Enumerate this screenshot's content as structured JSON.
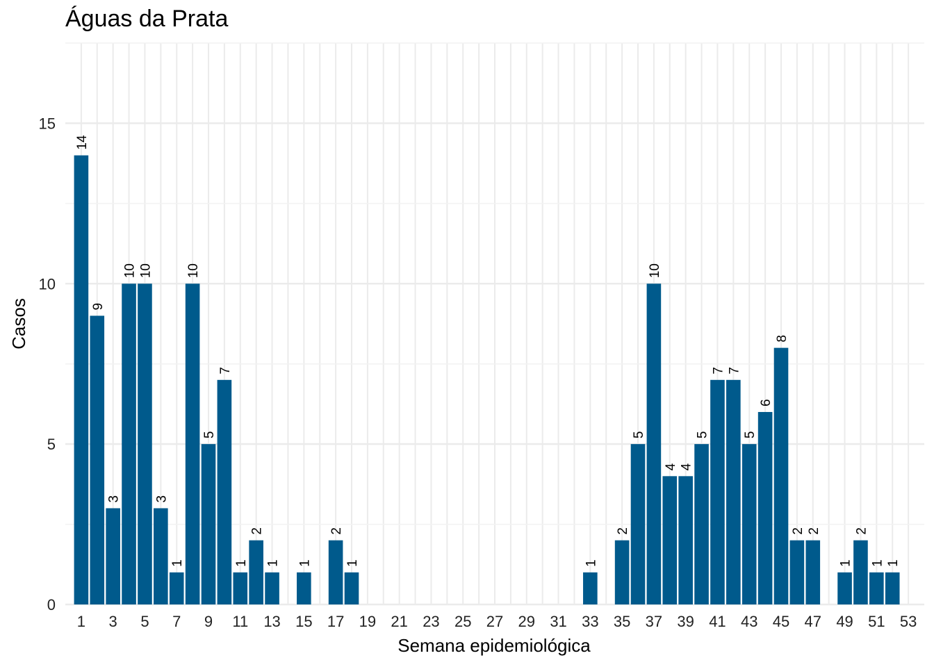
{
  "chart_data": {
    "type": "bar",
    "title": "Águas da Prata",
    "xlabel": "Semana epidemiológica",
    "ylabel": "Casos",
    "x": [
      1,
      2,
      3,
      4,
      5,
      6,
      7,
      8,
      9,
      10,
      11,
      12,
      13,
      15,
      17,
      18,
      33,
      35,
      36,
      37,
      38,
      39,
      40,
      41,
      42,
      43,
      44,
      45,
      46,
      47,
      49,
      50,
      51,
      52
    ],
    "values": [
      14,
      9,
      3,
      10,
      10,
      3,
      1,
      10,
      5,
      7,
      1,
      2,
      1,
      1,
      2,
      1,
      1,
      2,
      5,
      10,
      4,
      4,
      5,
      7,
      7,
      5,
      6,
      8,
      2,
      2,
      1,
      2,
      1,
      1
    ],
    "x_tick_labels": [
      "1",
      "3",
      "5",
      "7",
      "9",
      "11",
      "13",
      "15",
      "17",
      "19",
      "21",
      "23",
      "25",
      "27",
      "29",
      "31",
      "33",
      "35",
      "37",
      "39",
      "41",
      "43",
      "45",
      "47",
      "49",
      "51",
      "53"
    ],
    "y_tick_labels": [
      "0",
      "5",
      "10",
      "15"
    ],
    "xlim": [
      0,
      54
    ],
    "ylim": [
      0,
      17.5
    ],
    "bar_color": "#005A8C",
    "grid": true,
    "data_labels": true
  }
}
